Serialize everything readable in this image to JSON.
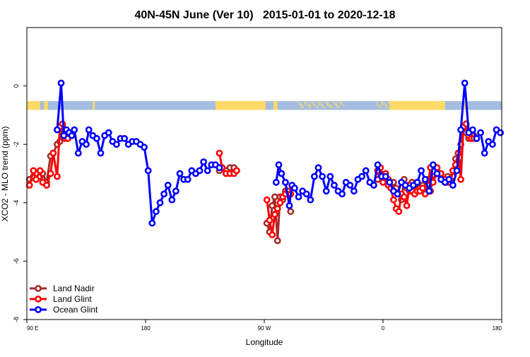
{
  "chart_data": {
    "type": "line",
    "title": "40N-45N June (Ver 10)   2015-01-01 to 2020-12-18",
    "xlabel": "Longitude",
    "ylabel": "XCO2 - MLO trend (ppm)",
    "xlim": [
      90,
      450
    ],
    "ylim": [
      -8,
      2
    ],
    "x_ticks": [
      {
        "value": 90,
        "label": "90 E"
      },
      {
        "value": 180,
        "label": "180"
      },
      {
        "value": 270,
        "label": "90 W"
      },
      {
        "value": 360,
        "label": "0"
      },
      {
        "value": 450,
        "label": "180"
      }
    ],
    "y_ticks": [
      {
        "value": 0,
        "label": "0"
      },
      {
        "value": -2,
        "label": "-2"
      },
      {
        "value": -4,
        "label": "-4"
      },
      {
        "value": -6,
        "label": "-6"
      },
      {
        "value": -8,
        "label": "-8"
      }
    ],
    "grid": false,
    "legend_position": "bottom-left",
    "land_ocean_band": {
      "y_range": [
        -0.82,
        -0.52
      ],
      "land_color": "#ffd966",
      "ocean_color": "#a4bde0",
      "land_segments": [
        [
          90,
          100
        ],
        [
          103,
          106
        ],
        [
          140,
          141.5
        ],
        [
          233,
          271
        ],
        [
          277,
          280
        ],
        [
          365,
          400
        ],
        [
          400,
          407
        ],
        [
          420,
          423
        ]
      ],
      "speckle_segments": [
        [
          295,
          330
        ],
        [
          355,
          370
        ],
        [
          384,
          389
        ],
        [
          395,
          398
        ]
      ]
    },
    "series": [
      {
        "name": "Land Nadir",
        "color": "#a52a2a",
        "x": [
          92,
          95,
          97,
          100,
          102,
          105,
          108,
          110,
          113,
          115,
          117,
          119,
          121,
          236,
          238,
          241,
          244,
          247,
          249,
          272,
          274,
          276,
          278,
          280,
          282,
          284,
          286,
          288,
          290,
          356,
          358,
          360,
          362,
          364,
          366,
          368,
          370,
          372,
          374,
          376,
          378,
          380,
          382,
          384,
          386,
          388,
          390,
          392,
          394,
          396,
          398,
          401,
          404,
          407,
          409,
          411,
          413,
          415,
          417,
          419,
          421,
          423,
          425,
          427,
          429
        ],
        "y": [
          -3.2,
          -3.1,
          -3.0,
          -3.1,
          -3.0,
          -3.3,
          -2.4,
          -2.3,
          -2.0,
          -1.9,
          -1.4,
          -1.6,
          -1.7,
          -2.9,
          -2.8,
          -2.9,
          -2.8,
          -2.8,
          -2.9,
          -4.7,
          -5.0,
          -4.1,
          -3.8,
          -5.3,
          -3.8,
          -3.9,
          -3.6,
          -3.6,
          -4.3,
          -3.2,
          -3.0,
          -3.1,
          -3.0,
          -3.2,
          -3.4,
          -3.3,
          -3.5,
          -3.7,
          -3.9,
          -3.2,
          -3.5,
          -3.6,
          -3.3,
          -3.4,
          -3.3,
          -3.5,
          -3.4,
          -3.5,
          -3.2,
          -3.6,
          -3.1,
          -3.0,
          -3.2,
          -3.3,
          -3.1,
          -3.2,
          -3.1,
          -2.5,
          -2.6,
          -2.0,
          -1.4,
          -1.6,
          -1.8,
          -1.8,
          -1.7
        ]
      },
      {
        "name": "Land Glint",
        "color": "#ff0000",
        "x": [
          92,
          95,
          97,
          100,
          102,
          105,
          108,
          110,
          113,
          115,
          117,
          119,
          121,
          236,
          238,
          241,
          244,
          247,
          249,
          272,
          274,
          276,
          278,
          280,
          282,
          284,
          286,
          288,
          290,
          356,
          358,
          360,
          362,
          364,
          366,
          368,
          370,
          372,
          374,
          376,
          378,
          380,
          382,
          384,
          386,
          388,
          390,
          392,
          394,
          396,
          398,
          401,
          404,
          407,
          409,
          411,
          413,
          415,
          417,
          419,
          421,
          423,
          425,
          427,
          429
        ],
        "y": [
          -3.4,
          -2.9,
          -3.2,
          -2.9,
          -3.3,
          -3.4,
          -3.0,
          -2.3,
          -3.1,
          -1.4,
          -1.3,
          -1.8,
          -1.8,
          -2.3,
          -2.8,
          -3.0,
          -3.0,
          -3.0,
          -2.9,
          -3.9,
          -4.6,
          -5.1,
          -4.4,
          -4.2,
          -4.0,
          -3.8,
          -3.7,
          -3.6,
          -3.7,
          -2.9,
          -2.8,
          -3.3,
          -3.0,
          -3.4,
          -3.5,
          -3.9,
          -4.2,
          -4.3,
          -3.7,
          -3.8,
          -4.1,
          -3.4,
          -3.6,
          -3.7,
          -3.6,
          -3.6,
          -3.5,
          -3.7,
          -3.4,
          -2.8,
          -3.3,
          -2.8,
          -3.0,
          -3.2,
          -3.3,
          -3.3,
          -2.9,
          -2.7,
          -2.3,
          -3.2,
          -1.4,
          -1.3,
          -1.7,
          -1.8,
          -1.8
        ]
      },
      {
        "name": "Ocean Glint",
        "color": "#0000ff",
        "x": [
          113,
          116,
          118,
          120,
          122,
          124,
          126,
          129,
          132,
          135,
          137,
          140,
          143,
          146,
          149,
          152,
          155,
          158,
          161,
          164,
          167,
          170,
          173,
          176,
          179,
          182,
          185,
          188,
          191,
          194,
          197,
          200,
          203,
          206,
          209,
          212,
          215,
          218,
          221,
          224,
          227,
          230,
          233,
          236,
          279,
          281,
          283,
          286,
          289,
          291,
          293,
          296,
          299,
          302,
          305,
          308,
          311,
          314,
          317,
          320,
          323,
          326,
          329,
          332,
          335,
          338,
          341,
          344,
          347,
          350,
          353,
          356,
          359,
          362,
          365,
          368,
          371,
          374,
          377,
          380,
          383,
          386,
          389,
          392,
          395,
          398,
          401,
          404,
          407,
          410,
          413,
          416,
          419,
          422,
          425,
          428,
          431,
          434,
          437,
          440,
          443,
          446,
          449
        ],
        "y": [
          -1.5,
          0.1,
          -1.7,
          -1.5,
          -1.6,
          -1.7,
          -1.5,
          -2.3,
          -1.9,
          -2.0,
          -1.5,
          -1.7,
          -1.8,
          -2.3,
          -1.7,
          -1.6,
          -1.9,
          -2.0,
          -1.8,
          -1.8,
          -2.0,
          -1.9,
          -1.9,
          -2.0,
          -2.1,
          -2.9,
          -4.7,
          -4.3,
          -4.0,
          -3.7,
          -3.4,
          -3.9,
          -3.6,
          -3.0,
          -3.2,
          -3.2,
          -2.9,
          -3.0,
          -2.9,
          -2.6,
          -2.9,
          -2.7,
          -2.7,
          -2.8,
          -3.3,
          -2.7,
          -3.0,
          -3.3,
          -4.1,
          -3.4,
          -3.5,
          -3.8,
          -3.6,
          -3.7,
          -3.9,
          -3.1,
          -2.8,
          -3.1,
          -3.6,
          -3.1,
          -3.4,
          -3.6,
          -3.7,
          -3.3,
          -3.4,
          -3.6,
          -3.2,
          -3.1,
          -2.9,
          -3.3,
          -3.4,
          -2.7,
          -3.1,
          -3.1,
          -3.3,
          -3.6,
          -3.7,
          -3.3,
          -3.4,
          -3.5,
          -3.4,
          -3.3,
          -2.9,
          -3.2,
          -3.6,
          -2.7,
          -3.0,
          -3.2,
          -3.3,
          -3.2,
          -3.4,
          -2.9,
          -1.5,
          0.1,
          -1.6,
          -1.5,
          -1.8,
          -1.6,
          -2.3,
          -1.9,
          -2.0,
          -1.5,
          -1.6
        ]
      }
    ]
  }
}
